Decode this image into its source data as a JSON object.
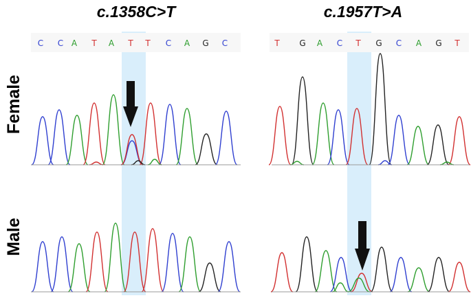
{
  "panels": [
    {
      "id": "left",
      "title": "c.1358C>T",
      "sequence": [
        "C",
        "C",
        "A",
        "T",
        "A",
        "T",
        "T",
        "C",
        "A",
        "G",
        "C"
      ],
      "highlight_index": 5
    },
    {
      "id": "right",
      "title": "c.1957T>A",
      "sequence": [
        "T",
        "G",
        "A",
        "C",
        "T",
        "G",
        "C",
        "A",
        "G",
        "T"
      ],
      "highlight_index": 4
    }
  ],
  "rows": [
    {
      "id": "female",
      "label": "Female"
    },
    {
      "id": "male",
      "label": "Male"
    }
  ],
  "base_colors": {
    "A": "#2e9e2e",
    "C": "#2f3fd0",
    "G": "#222222",
    "T": "#d23030"
  },
  "highlight_color": "#d9eefb",
  "arrows": [
    {
      "panel": "left",
      "row": "female"
    },
    {
      "panel": "right",
      "row": "male"
    }
  ]
}
